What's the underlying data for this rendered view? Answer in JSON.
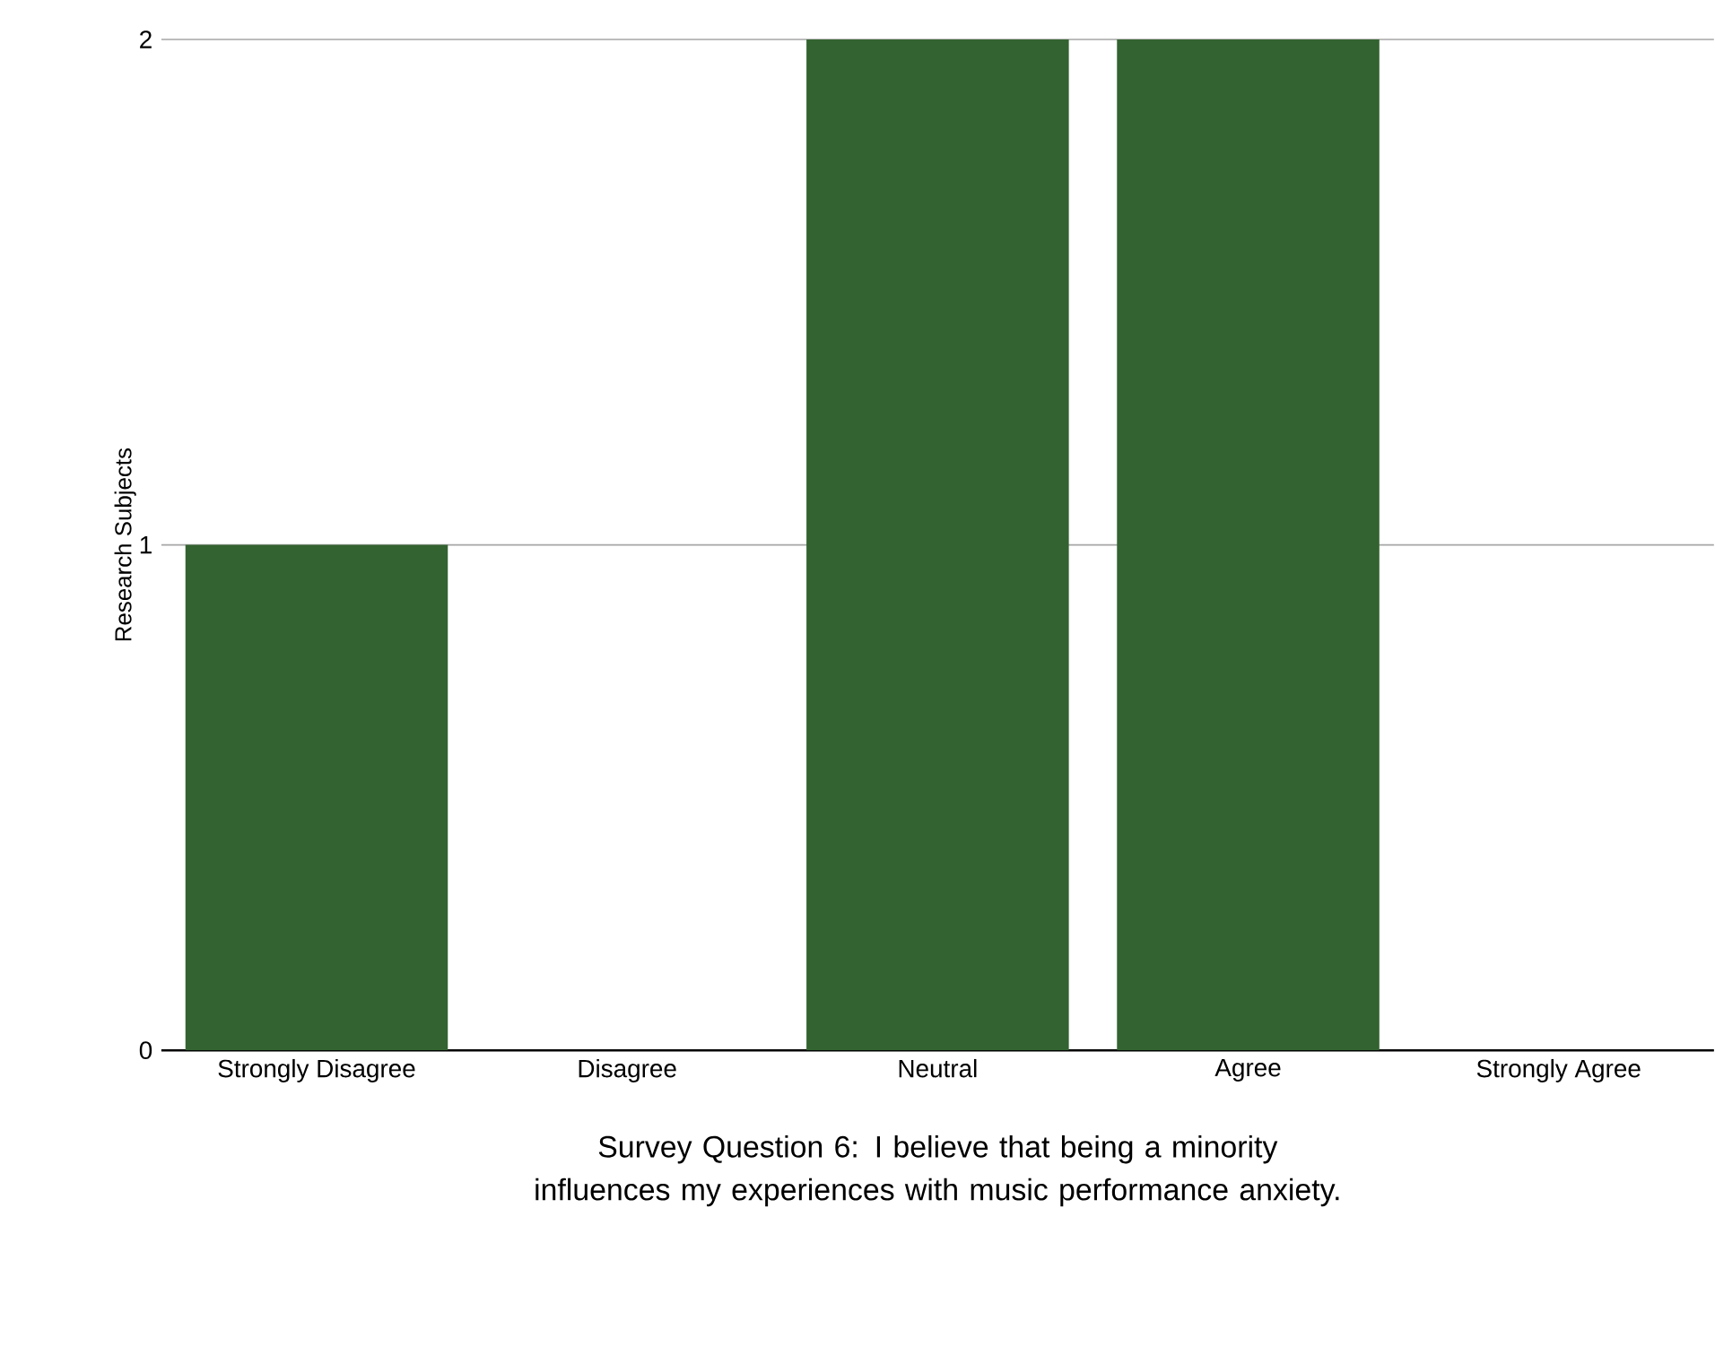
{
  "chart_data": {
    "type": "bar",
    "categories": [
      "Strongly Disagree",
      "Disagree",
      "Neutral",
      "Agree",
      "Strongly Agree"
    ],
    "values": [
      1,
      0,
      2,
      2,
      0
    ],
    "color": "#336330",
    "ylim": [
      0,
      2
    ],
    "yticks": [
      0,
      1,
      2
    ],
    "grid": "y",
    "ylabel": "Research Subjects",
    "xlabel": "Survey Question 6: I believe that being a minority influences my experiences with music performance anxiety."
  }
}
